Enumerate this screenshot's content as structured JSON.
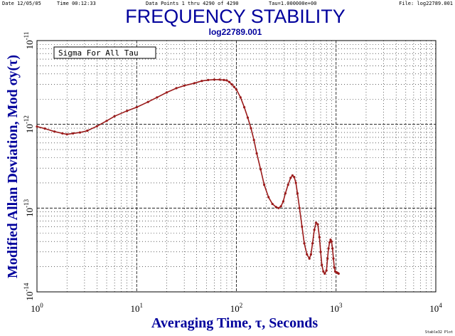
{
  "header": {
    "date": "Date  12/05/05",
    "time": "Time  00:12:33",
    "data_points": "Data Points 1 thru 4290 of 4290",
    "tau": "Tau=1.000000e+00",
    "file": "File: log22789.001"
  },
  "credit": "Stable32 Plot",
  "legend": {
    "text": "Sigma For All Tau"
  },
  "colors": {
    "title": "#00009c",
    "series": "#9a1a1a",
    "grid": "#000000"
  },
  "chart_data": {
    "type": "line",
    "title": "FREQUENCY STABILITY",
    "subtitle": "log22789.001",
    "xlabel": "Averaging Time, τ, Seconds",
    "ylabel": "Modified Allan Deviation, Mod σy(τ)",
    "x_scale": "log",
    "y_scale": "log",
    "xlim": [
      1,
      10000
    ],
    "ylim": [
      1e-14,
      1e-11
    ],
    "x_ticks": [
      {
        "base": "10",
        "exp": "0"
      },
      {
        "base": "10",
        "exp": "1"
      },
      {
        "base": "10",
        "exp": "2"
      },
      {
        "base": "10",
        "exp": "3"
      },
      {
        "base": "10",
        "exp": "4"
      }
    ],
    "y_ticks": [
      {
        "base": "10",
        "exp": "-14"
      },
      {
        "base": "10",
        "exp": "-13"
      },
      {
        "base": "10",
        "exp": "-12"
      },
      {
        "base": "10",
        "exp": "-11"
      }
    ],
    "grid": true,
    "series": [
      {
        "x": [
          1,
          1.2,
          1.5,
          1.8,
          2,
          2.3,
          2.7,
          3.2,
          4,
          5,
          6,
          8,
          10,
          13,
          16,
          20,
          25,
          30,
          38,
          45,
          52,
          60,
          68,
          75,
          80,
          85,
          90,
          95,
          100,
          110,
          120,
          130,
          140,
          150,
          160,
          175,
          190,
          210,
          230,
          250,
          265,
          280,
          295,
          310,
          330,
          350,
          365,
          380,
          395,
          410,
          430,
          455,
          480,
          510,
          540,
          560,
          580,
          605,
          630,
          655,
          680,
          700,
          720,
          745,
          770,
          800,
          820,
          840,
          860,
          880,
          900,
          920,
          940,
          960,
          980,
          1000,
          1020,
          1040,
          1060
        ],
        "y": [
          9.4e-13,
          8.9e-13,
          8.2e-13,
          7.8e-13,
          7.6e-13,
          7.8e-13,
          8e-13,
          8.4e-13,
          9.5e-13,
          1.1e-12,
          1.25e-12,
          1.45e-12,
          1.6e-12,
          1.85e-12,
          2.1e-12,
          2.4e-12,
          2.7e-12,
          2.9e-12,
          3.1e-12,
          3.3e-12,
          3.38e-12,
          3.42e-12,
          3.42e-12,
          3.38e-12,
          3.35e-12,
          3.2e-12,
          3e-12,
          2.8e-12,
          2.6e-12,
          2.1e-12,
          1.6e-12,
          1.2e-12,
          9e-13,
          6.5e-13,
          4.5e-13,
          2.9e-13,
          1.9e-13,
          1.35e-13,
          1.12e-13,
          1.03e-13,
          1e-13,
          1.05e-13,
          1.2e-13,
          1.5e-13,
          1.9e-13,
          2.3e-13,
          2.45e-13,
          2.35e-13,
          2e-13,
          1.5e-13,
          1e-13,
          6e-14,
          3.8e-14,
          2.8e-14,
          2.5e-14,
          2.8e-14,
          3.8e-14,
          5.5e-14,
          6.7e-14,
          6.4e-14,
          4.5e-14,
          3e-14,
          2.1e-14,
          1.75e-14,
          1.65e-14,
          1.8e-14,
          2.5e-14,
          3.3e-14,
          3.9e-14,
          4.2e-14,
          4e-14,
          3.3e-14,
          2.5e-14,
          1.95e-14,
          1.75e-14,
          1.72e-14,
          1.7e-14,
          1.68e-14,
          1.65e-14
        ]
      }
    ]
  }
}
